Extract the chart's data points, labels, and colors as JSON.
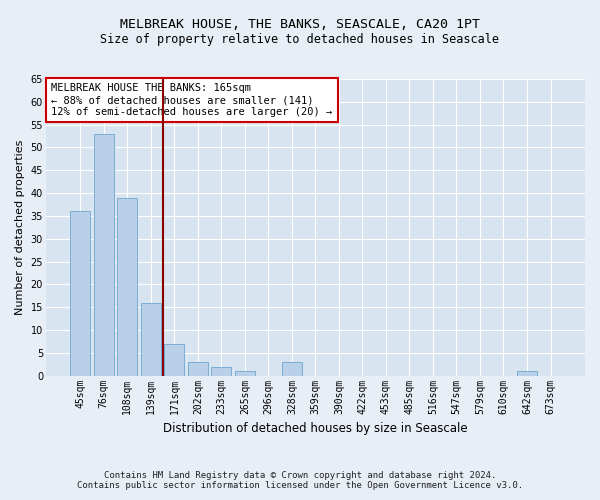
{
  "title": "MELBREAK HOUSE, THE BANKS, SEASCALE, CA20 1PT",
  "subtitle": "Size of property relative to detached houses in Seascale",
  "xlabel": "Distribution of detached houses by size in Seascale",
  "ylabel": "Number of detached properties",
  "categories": [
    "45sqm",
    "76sqm",
    "108sqm",
    "139sqm",
    "171sqm",
    "202sqm",
    "233sqm",
    "265sqm",
    "296sqm",
    "328sqm",
    "359sqm",
    "390sqm",
    "422sqm",
    "453sqm",
    "485sqm",
    "516sqm",
    "547sqm",
    "579sqm",
    "610sqm",
    "642sqm",
    "673sqm"
  ],
  "values": [
    36,
    53,
    39,
    16,
    7,
    3,
    2,
    1,
    0,
    3,
    0,
    0,
    0,
    0,
    0,
    0,
    0,
    0,
    0,
    1,
    0
  ],
  "bar_color": "#b8d0e8",
  "bar_edge_color": "#7aadd4",
  "vline_x_idx": 3.5,
  "vline_color": "#8b0000",
  "ylim": [
    0,
    65
  ],
  "yticks": [
    0,
    5,
    10,
    15,
    20,
    25,
    30,
    35,
    40,
    45,
    50,
    55,
    60,
    65
  ],
  "annotation_text": "MELBREAK HOUSE THE BANKS: 165sqm\n← 88% of detached houses are smaller (141)\n12% of semi-detached houses are larger (20) →",
  "annotation_box_facecolor": "white",
  "annotation_box_edgecolor": "#cc0000",
  "footer_line1": "Contains HM Land Registry data © Crown copyright and database right 2024.",
  "footer_line2": "Contains public sector information licensed under the Open Government Licence v3.0.",
  "fig_bg_color": "#e8eef5",
  "plot_bg_color": "#d8e4f0",
  "title_fontsize": 9.5,
  "subtitle_fontsize": 8.5,
  "ylabel_fontsize": 8,
  "xlabel_fontsize": 8.5,
  "tick_fontsize": 7,
  "footer_fontsize": 6.5,
  "annotation_fontsize": 7.5
}
